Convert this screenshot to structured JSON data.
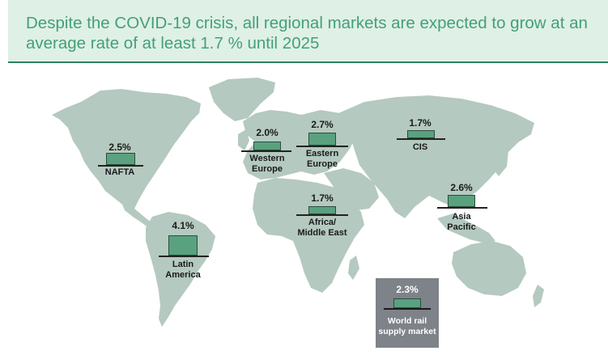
{
  "header": {
    "title": "Despite the COVID-19 crisis, all regional markets are expected to grow at an average rate of at least 1.7 % until 2025",
    "background": "#dff0e6",
    "title_color": "#43a077",
    "rule_color": "#2f8060"
  },
  "map": {
    "land_color": "#b4c9bf",
    "bar_color": "#5aa17f",
    "regions": [
      {
        "id": "nafta",
        "label": "NAFTA",
        "value": "2.5%",
        "growth": 2.5
      },
      {
        "id": "western-europe",
        "label": "Western\nEurope",
        "value": "2.0%",
        "growth": 2.0
      },
      {
        "id": "eastern-europe",
        "label": "Eastern\nEurope",
        "value": "2.7%",
        "growth": 2.7
      },
      {
        "id": "cis",
        "label": "CIS",
        "value": "1.7%",
        "growth": 1.7
      },
      {
        "id": "africa-middle-east",
        "label": "Africa/\nMiddle East",
        "value": "1.7%",
        "growth": 1.7
      },
      {
        "id": "asia-pacific",
        "label": "Asia\nPacific",
        "value": "2.6%",
        "growth": 2.6
      },
      {
        "id": "latin-america",
        "label": "Latin\nAmerica",
        "value": "4.1%",
        "growth": 4.1
      }
    ],
    "world": {
      "label": "World rail\nsupply market",
      "value": "2.3%",
      "growth": 2.3,
      "box_color": "#7e8289"
    }
  }
}
